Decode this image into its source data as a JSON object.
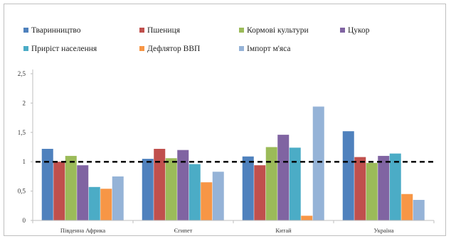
{
  "chart_data": {
    "type": "bar",
    "title": "",
    "xlabel": "",
    "ylabel": "",
    "categories": [
      "Південна Африка",
      "Єгипет",
      "Китай",
      "Україна"
    ],
    "series": [
      {
        "name": "Тваринництво",
        "color": "#4f81bd",
        "values": [
          1.22,
          1.05,
          1.09,
          1.52
        ]
      },
      {
        "name": "Пшениця",
        "color": "#c0504d",
        "values": [
          1.0,
          1.22,
          0.94,
          1.08
        ]
      },
      {
        "name": "Кормові культури",
        "color": "#9bbb59",
        "values": [
          1.1,
          1.06,
          1.25,
          0.98
        ]
      },
      {
        "name": "Цукор",
        "color": "#8064a2",
        "values": [
          0.94,
          1.2,
          1.46,
          1.1
        ]
      },
      {
        "name": "Приріст населення",
        "color": "#4bacc6",
        "values": [
          0.57,
          0.96,
          1.24,
          1.14
        ]
      },
      {
        "name": "Дефлятор ВВП",
        "color": "#f79646",
        "values": [
          0.54,
          0.65,
          0.08,
          0.45
        ]
      },
      {
        "name": "Імпорт м'яса",
        "color": "#95b3d7",
        "values": [
          0.75,
          0.83,
          1.94,
          0.35
        ]
      }
    ],
    "reference_line": {
      "value": 1.0,
      "style": "dashed",
      "color": "#000000"
    },
    "y_ticks": [
      "0",
      "0,5",
      "1",
      "1,5",
      "2",
      "2,5"
    ],
    "y_tick_values": [
      0,
      0.5,
      1,
      1.5,
      2,
      2.5
    ],
    "ylim": [
      0,
      2.5
    ],
    "grid": false,
    "legend_position": "top"
  }
}
